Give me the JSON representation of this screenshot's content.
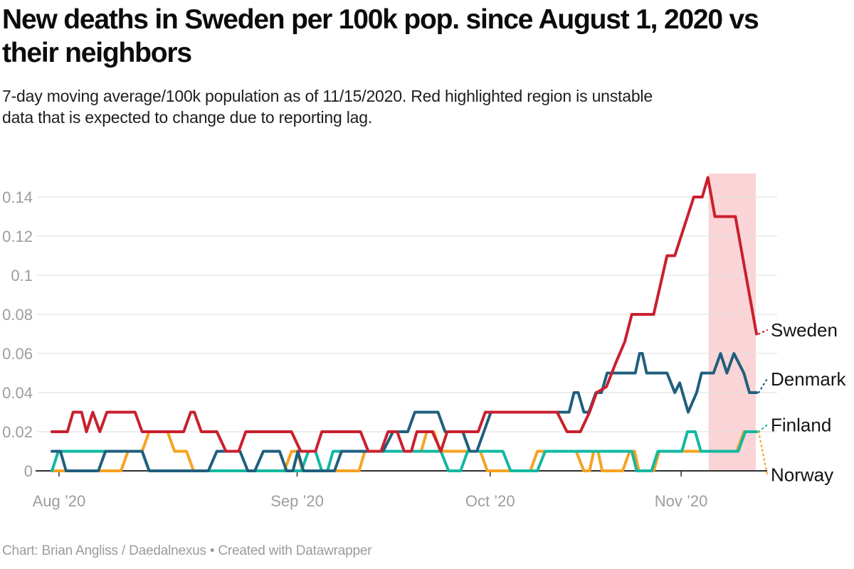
{
  "header": {
    "title_lines": [
      "New deaths in Sweden per 100k pop. since August 1, 2020 vs",
      "their neighbors"
    ],
    "subtitle_lines": [
      "7-day moving average/100k population as of 11/15/2020. Red highlighted region is unstable",
      "data that is expected to change due to reporting lag."
    ]
  },
  "footer": {
    "credit": "Chart: Brian Angliss / Daedalnexus • Created with Datawrapper"
  },
  "palette": {
    "grid": "#e4e4e4",
    "axis": "#2f2f2f",
    "axis_label": "#9d9d9d",
    "series_label": "#141414",
    "band": "#fad4d6",
    "background": "#ffffff"
  },
  "chart_data": {
    "type": "line",
    "title": "New deaths in Sweden per 100k pop. since August 1, 2020 vs their neighbors",
    "subtitle": "7-day moving average/100k population as of 11/15/2020. Red highlighted region is unstable data that is expected to change due to reporting lag.",
    "xlabel": "",
    "ylabel": "",
    "ylim": [
      0,
      0.152
    ],
    "grid": true,
    "legend_position": "right-line-end-labels",
    "x_ticks": [
      {
        "t": 0.01,
        "label": "Aug ’20"
      },
      {
        "t": 0.348,
        "label": "Sep ’20"
      },
      {
        "t": 0.622,
        "label": "Oct ’20"
      },
      {
        "t": 0.893,
        "label": "Nov ’20"
      }
    ],
    "y_ticks": [
      {
        "v": 0,
        "label": "0"
      },
      {
        "v": 0.02,
        "label": "0.02"
      },
      {
        "v": 0.04,
        "label": "0.04"
      },
      {
        "v": 0.06,
        "label": "0.06"
      },
      {
        "v": 0.08,
        "label": "0.08"
      },
      {
        "v": 0.1,
        "label": "0.1"
      },
      {
        "v": 0.12,
        "label": "0.12"
      },
      {
        "v": 0.14,
        "label": "0.14"
      }
    ],
    "unstable_region": {
      "t0": 0.932,
      "t1": 0.999,
      "note": "reporting lag window ending 11/15/2020"
    },
    "series": [
      {
        "name": "Sweden",
        "color": "#c9202e",
        "label_v": 0.072,
        "points": [
          [
            0,
            0.02
          ],
          [
            0.022,
            0.02
          ],
          [
            0.03,
            0.03
          ],
          [
            0.042,
            0.03
          ],
          [
            0.049,
            0.02
          ],
          [
            0.058,
            0.03
          ],
          [
            0.068,
            0.02
          ],
          [
            0.078,
            0.03
          ],
          [
            0.118,
            0.03
          ],
          [
            0.128,
            0.02
          ],
          [
            0.187,
            0.02
          ],
          [
            0.197,
            0.03
          ],
          [
            0.202,
            0.03
          ],
          [
            0.212,
            0.02
          ],
          [
            0.234,
            0.02
          ],
          [
            0.247,
            0.01
          ],
          [
            0.265,
            0.01
          ],
          [
            0.275,
            0.02
          ],
          [
            0.34,
            0.02
          ],
          [
            0.353,
            0.01
          ],
          [
            0.374,
            0.01
          ],
          [
            0.383,
            0.02
          ],
          [
            0.438,
            0.02
          ],
          [
            0.449,
            0.01
          ],
          [
            0.467,
            0.01
          ],
          [
            0.477,
            0.02
          ],
          [
            0.49,
            0.02
          ],
          [
            0.5,
            0.01
          ],
          [
            0.51,
            0.01
          ],
          [
            0.518,
            0.02
          ],
          [
            0.54,
            0.02
          ],
          [
            0.552,
            0.01
          ],
          [
            0.561,
            0.02
          ],
          [
            0.605,
            0.02
          ],
          [
            0.615,
            0.03
          ],
          [
            0.717,
            0.03
          ],
          [
            0.731,
            0.02
          ],
          [
            0.75,
            0.02
          ],
          [
            0.763,
            0.03
          ],
          [
            0.773,
            0.04
          ],
          [
            0.787,
            0.043
          ],
          [
            0.8,
            0.055
          ],
          [
            0.813,
            0.066
          ],
          [
            0.823,
            0.08
          ],
          [
            0.854,
            0.08
          ],
          [
            0.873,
            0.11
          ],
          [
            0.884,
            0.11
          ],
          [
            0.911,
            0.14
          ],
          [
            0.923,
            0.14
          ],
          [
            0.931,
            0.15
          ],
          [
            0.941,
            0.13
          ],
          [
            0.97,
            0.13
          ],
          [
            1,
            0.07
          ]
        ]
      },
      {
        "name": "Denmark",
        "color": "#205f7d",
        "label_v": 0.047,
        "points": [
          [
            0,
            0.01
          ],
          [
            0.012,
            0.01
          ],
          [
            0.02,
            0
          ],
          [
            0.066,
            0
          ],
          [
            0.076,
            0.01
          ],
          [
            0.128,
            0.01
          ],
          [
            0.138,
            0
          ],
          [
            0.222,
            0
          ],
          [
            0.234,
            0.01
          ],
          [
            0.267,
            0.01
          ],
          [
            0.278,
            0
          ],
          [
            0.288,
            0
          ],
          [
            0.3,
            0.01
          ],
          [
            0.323,
            0.01
          ],
          [
            0.333,
            0
          ],
          [
            0.342,
            0
          ],
          [
            0.349,
            0.01
          ],
          [
            0.357,
            0
          ],
          [
            0.401,
            0
          ],
          [
            0.411,
            0.01
          ],
          [
            0.47,
            0.01
          ],
          [
            0.484,
            0.02
          ],
          [
            0.505,
            0.02
          ],
          [
            0.515,
            0.03
          ],
          [
            0.548,
            0.03
          ],
          [
            0.558,
            0.02
          ],
          [
            0.583,
            0.02
          ],
          [
            0.593,
            0.01
          ],
          [
            0.603,
            0.01
          ],
          [
            0.613,
            0.02
          ],
          [
            0.623,
            0.03
          ],
          [
            0.734,
            0.03
          ],
          [
            0.741,
            0.04
          ],
          [
            0.747,
            0.04
          ],
          [
            0.755,
            0.03
          ],
          [
            0.762,
            0.03
          ],
          [
            0.772,
            0.04
          ],
          [
            0.78,
            0.04
          ],
          [
            0.788,
            0.05
          ],
          [
            0.828,
            0.05
          ],
          [
            0.834,
            0.06
          ],
          [
            0.838,
            0.06
          ],
          [
            0.844,
            0.05
          ],
          [
            0.873,
            0.05
          ],
          [
            0.884,
            0.04
          ],
          [
            0.891,
            0.045
          ],
          [
            0.903,
            0.03
          ],
          [
            0.915,
            0.04
          ],
          [
            0.922,
            0.05
          ],
          [
            0.939,
            0.05
          ],
          [
            0.949,
            0.06
          ],
          [
            0.958,
            0.05
          ],
          [
            0.968,
            0.06
          ],
          [
            0.982,
            0.05
          ],
          [
            0.99,
            0.04
          ],
          [
            1,
            0.04
          ]
        ]
      },
      {
        "name": "Finland",
        "color": "#12b8a1",
        "label_v": 0.0235,
        "points": [
          [
            0,
            0
          ],
          [
            0.009,
            0.01
          ],
          [
            0.128,
            0.01
          ],
          [
            0.138,
            0
          ],
          [
            0.354,
            0
          ],
          [
            0.364,
            0.01
          ],
          [
            0.374,
            0.01
          ],
          [
            0.383,
            0
          ],
          [
            0.391,
            0
          ],
          [
            0.399,
            0.01
          ],
          [
            0.552,
            0.01
          ],
          [
            0.563,
            0
          ],
          [
            0.58,
            0
          ],
          [
            0.59,
            0.01
          ],
          [
            0.64,
            0.01
          ],
          [
            0.651,
            0
          ],
          [
            0.689,
            0
          ],
          [
            0.7,
            0.01
          ],
          [
            0.823,
            0.01
          ],
          [
            0.83,
            0
          ],
          [
            0.851,
            0
          ],
          [
            0.86,
            0.01
          ],
          [
            0.894,
            0.01
          ],
          [
            0.902,
            0.02
          ],
          [
            0.913,
            0.02
          ],
          [
            0.921,
            0.01
          ],
          [
            0.974,
            0.01
          ],
          [
            0.984,
            0.02
          ],
          [
            1,
            0.02
          ]
        ]
      },
      {
        "name": "Norway",
        "color": "#f7a220",
        "label_v": -0.002,
        "points": [
          [
            0,
            0
          ],
          [
            0.098,
            0
          ],
          [
            0.108,
            0.01
          ],
          [
            0.128,
            0.01
          ],
          [
            0.138,
            0.02
          ],
          [
            0.164,
            0.02
          ],
          [
            0.174,
            0.01
          ],
          [
            0.191,
            0.01
          ],
          [
            0.201,
            0
          ],
          [
            0.33,
            0
          ],
          [
            0.34,
            0.01
          ],
          [
            0.348,
            0.01
          ],
          [
            0.356,
            0
          ],
          [
            0.436,
            0
          ],
          [
            0.444,
            0.01
          ],
          [
            0.524,
            0.01
          ],
          [
            0.532,
            0.02
          ],
          [
            0.542,
            0.02
          ],
          [
            0.551,
            0.01
          ],
          [
            0.608,
            0.01
          ],
          [
            0.618,
            0
          ],
          [
            0.679,
            0
          ],
          [
            0.689,
            0.01
          ],
          [
            0.744,
            0.01
          ],
          [
            0.755,
            0
          ],
          [
            0.763,
            0
          ],
          [
            0.769,
            0.01
          ],
          [
            0.775,
            0.01
          ],
          [
            0.781,
            0
          ],
          [
            0.81,
            0
          ],
          [
            0.82,
            0.01
          ],
          [
            0.827,
            0.01
          ],
          [
            0.833,
            0
          ],
          [
            0.854,
            0
          ],
          [
            0.862,
            0.01
          ],
          [
            0.972,
            0.01
          ],
          [
            0.982,
            0.02
          ],
          [
            1,
            0.02
          ]
        ]
      }
    ]
  }
}
